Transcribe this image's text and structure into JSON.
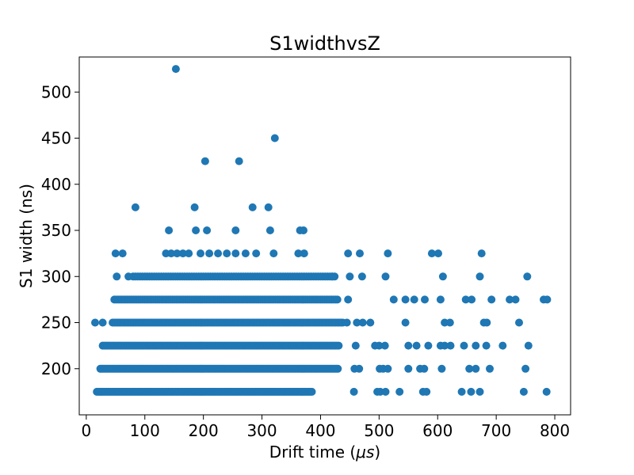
{
  "chart_data": {
    "type": "scatter",
    "title": "S1widthvsZ",
    "xlabel": "Drift time (",
    "xlabel_unit": "μs",
    "xlabel_suffix": ")",
    "ylabel": "S1 width (ns)",
    "xlim": [
      -12,
      827
    ],
    "ylim": [
      150,
      538
    ],
    "xticks": [
      0,
      100,
      200,
      300,
      400,
      500,
      600,
      700,
      800
    ],
    "yticks": [
      200,
      250,
      300,
      350,
      400,
      450,
      500
    ],
    "grid": false,
    "marker_color": "#1f77b4",
    "series": [
      {
        "points": [
          [
            153,
            525
          ],
          [
            322,
            450
          ],
          [
            203,
            425
          ],
          [
            261,
            425
          ],
          [
            84,
            375
          ],
          [
            185,
            375
          ],
          [
            284,
            375
          ],
          [
            311,
            375
          ],
          [
            141,
            350
          ],
          [
            187,
            350
          ],
          [
            206,
            350
          ],
          [
            255,
            350
          ],
          [
            314,
            350
          ],
          [
            365,
            350
          ],
          [
            371,
            350
          ],
          [
            50,
            325
          ],
          [
            62,
            325
          ],
          [
            136,
            325
          ],
          [
            145,
            325
          ],
          [
            155,
            325
          ],
          [
            165,
            325
          ],
          [
            175,
            325
          ],
          [
            195,
            325
          ],
          [
            210,
            325
          ],
          [
            225,
            325
          ],
          [
            240,
            325
          ],
          [
            255,
            325
          ],
          [
            272,
            325
          ],
          [
            290,
            325
          ],
          [
            320,
            325
          ],
          [
            362,
            325
          ],
          [
            372,
            325
          ],
          [
            447,
            325
          ],
          [
            467,
            325
          ],
          [
            515,
            325
          ],
          [
            590,
            325
          ],
          [
            601,
            325
          ],
          [
            675,
            325
          ],
          [
            52,
            300
          ],
          [
            72,
            300
          ],
          [
            420,
            300
          ],
          [
            450,
            300
          ],
          [
            471,
            300
          ],
          [
            511,
            300
          ],
          [
            609,
            300
          ],
          [
            672,
            300
          ],
          [
            753,
            300
          ],
          [
            447,
            275
          ],
          [
            525,
            275
          ],
          [
            545,
            275
          ],
          [
            560,
            275
          ],
          [
            578,
            275
          ],
          [
            605,
            275
          ],
          [
            648,
            275
          ],
          [
            658,
            275
          ],
          [
            692,
            275
          ],
          [
            723,
            275
          ],
          [
            733,
            275
          ],
          [
            781,
            275
          ],
          [
            787,
            275
          ],
          [
            15,
            250
          ],
          [
            28,
            250
          ],
          [
            445,
            250
          ],
          [
            462,
            250
          ],
          [
            472,
            250
          ],
          [
            485,
            250
          ],
          [
            545,
            250
          ],
          [
            612,
            250
          ],
          [
            621,
            250
          ],
          [
            679,
            250
          ],
          [
            684,
            250
          ],
          [
            739,
            250
          ],
          [
            460,
            225
          ],
          [
            493,
            225
          ],
          [
            500,
            225
          ],
          [
            510,
            225
          ],
          [
            550,
            225
          ],
          [
            564,
            225
          ],
          [
            584,
            225
          ],
          [
            605,
            225
          ],
          [
            612,
            225
          ],
          [
            622,
            225
          ],
          [
            645,
            225
          ],
          [
            665,
            225
          ],
          [
            683,
            225
          ],
          [
            711,
            225
          ],
          [
            755,
            225
          ],
          [
            458,
            200
          ],
          [
            466,
            200
          ],
          [
            501,
            200
          ],
          [
            507,
            200
          ],
          [
            515,
            200
          ],
          [
            550,
            200
          ],
          [
            570,
            200
          ],
          [
            577,
            200
          ],
          [
            607,
            200
          ],
          [
            654,
            200
          ],
          [
            665,
            200
          ],
          [
            689,
            200
          ],
          [
            750,
            200
          ],
          [
            457,
            175
          ],
          [
            497,
            175
          ],
          [
            502,
            175
          ],
          [
            511,
            175
          ],
          [
            535,
            175
          ],
          [
            575,
            175
          ],
          [
            581,
            175
          ],
          [
            641,
            175
          ],
          [
            657,
            175
          ],
          [
            672,
            175
          ],
          [
            747,
            175
          ],
          [
            786,
            175
          ]
        ],
        "dense_bands": [
          {
            "y": 300,
            "x_range": [
              80,
              425
            ],
            "step": 4
          },
          {
            "y": 275,
            "x_range": [
              48,
              430
            ],
            "step": 3.2
          },
          {
            "y": 250,
            "x_range": [
              45,
              440
            ],
            "step": 3
          },
          {
            "y": 225,
            "x_range": [
              28,
              432
            ],
            "step": 2.6
          },
          {
            "y": 200,
            "x_range": [
              24,
              430
            ],
            "step": 2.4
          },
          {
            "y": 175,
            "x_range": [
              18,
              386
            ],
            "step": 2.4
          }
        ]
      }
    ]
  }
}
